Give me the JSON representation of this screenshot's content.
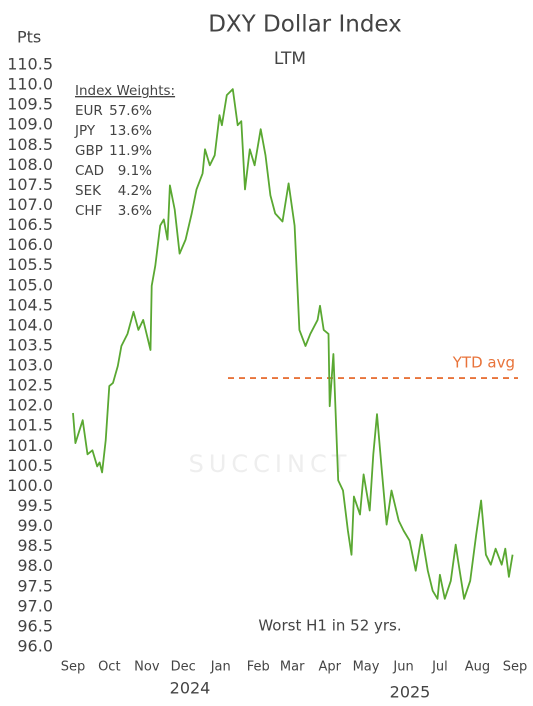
{
  "chart_data": {
    "type": "line",
    "title": "DXY Dollar Index",
    "subtitle": "LTM",
    "y_label": "Pts",
    "color": "#5aa832",
    "x": [
      0,
      2,
      8,
      12,
      16,
      20,
      22,
      24,
      27,
      30,
      33,
      37,
      40,
      45,
      50,
      54,
      58,
      64,
      65,
      68,
      72,
      75,
      78,
      80,
      84,
      88,
      93,
      98,
      102,
      107,
      109,
      113,
      117,
      121,
      123,
      127,
      132,
      136,
      139,
      142,
      146,
      150,
      155,
      159,
      163,
      167,
      173,
      178,
      183,
      187,
      192,
      196,
      202,
      204,
      207,
      211,
      212,
      215,
      219,
      223,
      227,
      230,
      232,
      237,
      240,
      245,
      248,
      251,
      255,
      259,
      263,
      269,
      273,
      278,
      283,
      288,
      293,
      297,
      301,
      303,
      307,
      312,
      316,
      318,
      323,
      328,
      333,
      337,
      341,
      345,
      349,
      354,
      357,
      360,
      363
    ],
    "values": [
      101.83,
      101.08,
      101.65,
      100.8,
      100.9,
      100.5,
      100.6,
      100.35,
      101.15,
      102.5,
      102.58,
      103.0,
      103.5,
      103.8,
      104.35,
      103.9,
      104.15,
      103.4,
      105.0,
      105.5,
      106.5,
      106.65,
      106.15,
      107.5,
      106.9,
      105.8,
      106.15,
      106.8,
      107.4,
      107.8,
      108.4,
      108.0,
      108.25,
      109.25,
      109.0,
      109.75,
      109.9,
      109.0,
      109.1,
      107.4,
      108.4,
      108.0,
      108.9,
      108.25,
      107.25,
      106.8,
      106.6,
      107.55,
      106.5,
      103.9,
      103.5,
      103.8,
      104.15,
      104.5,
      103.9,
      103.8,
      102.0,
      103.3,
      100.15,
      99.9,
      98.9,
      98.3,
      99.75,
      99.3,
      100.3,
      99.4,
      100.8,
      101.8,
      100.4,
      99.05,
      99.9,
      99.15,
      98.9,
      98.65,
      97.9,
      98.8,
      97.9,
      97.4,
      97.2,
      97.8,
      97.2,
      97.65,
      98.55,
      98.15,
      97.2,
      97.65,
      98.8,
      99.65,
      98.3,
      98.05,
      98.45,
      98.05,
      98.45,
      97.75,
      98.3
    ],
    "xlim": [
      0,
      365
    ],
    "xticks": [
      {
        "value": 0,
        "label": "Sep"
      },
      {
        "value": 30,
        "label": "Oct"
      },
      {
        "value": 61,
        "label": "Nov"
      },
      {
        "value": 91,
        "label": "Dec"
      },
      {
        "value": 122,
        "label": "Jan"
      },
      {
        "value": 153,
        "label": "Feb"
      },
      {
        "value": 181,
        "label": "Mar"
      },
      {
        "value": 212,
        "label": "Apr"
      },
      {
        "value": 242,
        "label": "May"
      },
      {
        "value": 273,
        "label": "Jun"
      },
      {
        "value": 303,
        "label": "Jul"
      },
      {
        "value": 334,
        "label": "Aug"
      },
      {
        "value": 365,
        "label": "Sep"
      }
    ],
    "year_labels": [
      "2024",
      "2025"
    ],
    "ylim": [
      96,
      110.5
    ],
    "yticks": [
      {
        "value": 96,
        "label": "96.0"
      },
      96.5,
      {
        "value": 97,
        "label": "97.0"
      },
      97.5,
      {
        "value": 98,
        "label": "98.0"
      },
      98.5,
      {
        "value": 99,
        "label": "99.0"
      },
      99.5,
      {
        "value": 100,
        "label": "100.0"
      },
      100.5,
      {
        "value": 101,
        "label": "101.0"
      },
      101.5,
      {
        "value": 102,
        "label": "102.0"
      },
      102.5,
      {
        "value": 103,
        "label": "103.0"
      },
      103.5,
      {
        "value": 104,
        "label": "104.0"
      },
      104.5,
      {
        "value": 105,
        "label": "105.0"
      },
      105.5,
      {
        "value": 106,
        "label": "106.0"
      },
      106.5,
      {
        "value": 107,
        "label": "107.0"
      },
      107.5,
      {
        "value": 108,
        "label": "108.0"
      },
      108.5,
      {
        "value": 109,
        "label": "109.0"
      },
      109.5,
      {
        "value": 110,
        "label": "110.0"
      },
      110.5
    ],
    "reference_line": {
      "label": "YTD avg",
      "value": 102.7,
      "x_start": 128,
      "color": "#e8733a"
    },
    "annotation": "Worst H1 in 52 yrs.",
    "watermark": "SUCCINCT",
    "weights": {
      "title": "Index Weights:",
      "items": [
        {
          "currency": "EUR",
          "weight": "57.6%"
        },
        {
          "currency": "JPY",
          "weight": "13.6%"
        },
        {
          "currency": "GBP",
          "weight": "11.9%"
        },
        {
          "currency": "CAD",
          "weight": "9.1%"
        },
        {
          "currency": "SEK",
          "weight": "4.2%"
        },
        {
          "currency": "CHF",
          "weight": "3.6%"
        }
      ]
    }
  }
}
